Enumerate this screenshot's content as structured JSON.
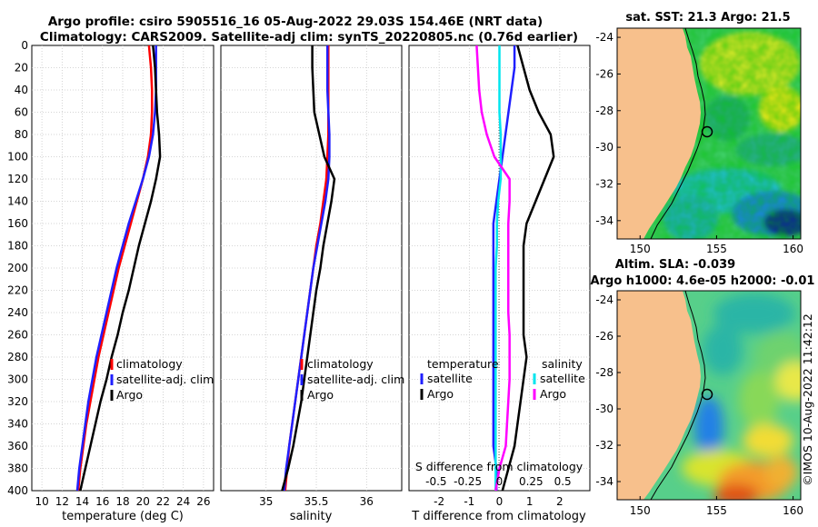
{
  "figure": {
    "title_line1": "Argo profile: csiro 5905516_16 05-Aug-2022 29.03S 154.46E (NRT data)",
    "title_line2": "Climatology: CARS2009. Satellite-adj clim: synTS_20220805.nc (0.76d earlier)",
    "timestamp": "©IMOS 10-Aug-2022 11:42:12"
  },
  "colors": {
    "climatology": "#ff0000",
    "satellite": "#1f1fff",
    "argo": "#000000",
    "salinity_sat": "#00e5ee",
    "salinity_argo": "#ff00ff",
    "land": "#f7c08c"
  },
  "chart_data": [
    {
      "type": "line",
      "name": "temperature-profile",
      "xlabel": "temperature (deg C)",
      "ylabel": "",
      "xlim": [
        9,
        27
      ],
      "ylim": [
        400,
        0
      ],
      "xticks": [
        "10",
        "12",
        "14",
        "16",
        "18",
        "20",
        "22",
        "24",
        "26"
      ],
      "yticks": [
        "0",
        "20",
        "40",
        "60",
        "80",
        "100",
        "120",
        "140",
        "160",
        "180",
        "200",
        "220",
        "240",
        "260",
        "280",
        "300",
        "320",
        "340",
        "360",
        "380",
        "400"
      ],
      "grid": true,
      "legend": [
        "climatology",
        "satellite-adj. clim",
        "Argo"
      ],
      "legend_position": "middle-right",
      "series": [
        {
          "name": "climatology",
          "color": "#ff0000",
          "x": [
            20.6,
            20.8,
            20.9,
            20.9,
            20.8,
            20.5,
            20.0,
            19.4,
            18.8,
            18.2,
            17.6,
            17.1,
            16.6,
            16.1,
            15.6,
            15.2,
            14.8,
            14.4,
            14.1,
            13.8,
            13.6
          ],
          "y": [
            0,
            20,
            40,
            60,
            80,
            100,
            120,
            140,
            160,
            180,
            200,
            220,
            240,
            260,
            280,
            300,
            320,
            340,
            360,
            380,
            400
          ]
        },
        {
          "name": "satellite-adj. clim",
          "color": "#1f1fff",
          "x": [
            21.3,
            21.3,
            21.3,
            21.2,
            21.0,
            20.6,
            20.0,
            19.3,
            18.6,
            18.0,
            17.4,
            16.9,
            16.4,
            15.9,
            15.4,
            15.0,
            14.6,
            14.3,
            14.0,
            13.7,
            13.5
          ],
          "y": [
            0,
            20,
            40,
            60,
            80,
            100,
            120,
            140,
            160,
            180,
            200,
            220,
            240,
            260,
            280,
            300,
            320,
            340,
            360,
            380,
            400
          ]
        },
        {
          "name": "Argo",
          "color": "#000000",
          "x": [
            21.0,
            21.2,
            21.3,
            21.4,
            21.6,
            21.7,
            21.3,
            20.8,
            20.2,
            19.6,
            19.1,
            18.6,
            18.0,
            17.5,
            16.9,
            16.4,
            15.8,
            15.3,
            14.8,
            14.3,
            13.8
          ],
          "y": [
            0,
            20,
            40,
            60,
            80,
            100,
            120,
            140,
            160,
            180,
            200,
            220,
            240,
            260,
            280,
            300,
            320,
            340,
            360,
            380,
            400
          ]
        }
      ]
    },
    {
      "type": "line",
      "name": "salinity-profile",
      "xlabel": "salinity",
      "xlim": [
        34.55,
        36.35
      ],
      "ylim": [
        400,
        0
      ],
      "xticks": [
        "35",
        "35.5",
        "36"
      ],
      "grid": true,
      "legend": [
        "climatology",
        "satellite-adj. clim",
        "Argo"
      ],
      "legend_position": "middle-right",
      "series": [
        {
          "name": "climatology",
          "color": "#ff0000",
          "x": [
            35.62,
            35.62,
            35.62,
            35.62,
            35.62,
            35.61,
            35.6,
            35.57,
            35.54,
            35.5,
            35.47,
            35.44,
            35.41,
            35.38,
            35.35,
            35.32,
            35.29,
            35.26,
            35.23,
            35.21,
            35.19
          ],
          "y": [
            0,
            20,
            40,
            60,
            80,
            100,
            120,
            140,
            160,
            180,
            200,
            220,
            240,
            260,
            280,
            300,
            320,
            340,
            360,
            380,
            400
          ]
        },
        {
          "name": "satellite-adj. clim",
          "color": "#1f1fff",
          "x": [
            35.61,
            35.61,
            35.61,
            35.62,
            35.63,
            35.63,
            35.62,
            35.59,
            35.55,
            35.51,
            35.47,
            35.44,
            35.41,
            35.38,
            35.35,
            35.32,
            35.29,
            35.26,
            35.23,
            35.2,
            35.18
          ],
          "y": [
            0,
            20,
            40,
            60,
            80,
            100,
            120,
            140,
            160,
            180,
            200,
            220,
            240,
            260,
            280,
            300,
            320,
            340,
            360,
            380,
            400
          ]
        },
        {
          "name": "Argo",
          "color": "#000000",
          "x": [
            35.46,
            35.46,
            35.47,
            35.48,
            35.53,
            35.58,
            35.68,
            35.65,
            35.61,
            35.57,
            35.54,
            35.5,
            35.47,
            35.44,
            35.41,
            35.38,
            35.35,
            35.31,
            35.27,
            35.22,
            35.16
          ],
          "y": [
            0,
            20,
            40,
            60,
            80,
            100,
            120,
            140,
            160,
            180,
            200,
            220,
            240,
            260,
            280,
            300,
            320,
            340,
            360,
            380,
            400
          ]
        }
      ]
    },
    {
      "type": "line",
      "name": "difference-profile",
      "xlabel": "T difference from climatology",
      "top_axis_label": "S difference from climatology",
      "xlim": [
        -3,
        3
      ],
      "ylim": [
        400,
        0
      ],
      "xticks": [
        "-2",
        "-1",
        "0",
        "1",
        "2"
      ],
      "top_ticks": [
        "-0.5",
        "-0.25",
        "0",
        "0.25",
        "0.5"
      ],
      "grid": true,
      "legend_temperature_title": "temperature",
      "legend_salinity_title": "salinity",
      "legend_temperature": [
        "satellite",
        "Argo"
      ],
      "legend_salinity": [
        "satellite",
        "Argo"
      ],
      "series": [
        {
          "name": "T satellite",
          "color": "#1f1fff",
          "x": [
            0.5,
            0.5,
            0.4,
            0.3,
            0.2,
            0.1,
            0.0,
            -0.1,
            -0.2,
            -0.2,
            -0.2,
            -0.2,
            -0.2,
            -0.2,
            -0.2,
            -0.2,
            -0.2,
            -0.2,
            -0.2,
            -0.1,
            -0.1
          ],
          "y": [
            0,
            20,
            40,
            60,
            80,
            100,
            120,
            140,
            160,
            180,
            200,
            220,
            240,
            260,
            280,
            300,
            320,
            340,
            360,
            380,
            400
          ]
        },
        {
          "name": "T Argo",
          "color": "#000000",
          "x": [
            0.6,
            0.8,
            1.0,
            1.3,
            1.7,
            1.8,
            1.5,
            1.2,
            0.9,
            0.8,
            0.8,
            0.8,
            0.8,
            0.8,
            0.9,
            0.8,
            0.7,
            0.6,
            0.5,
            0.3,
            0.1
          ],
          "y": [
            0,
            20,
            40,
            60,
            80,
            100,
            120,
            140,
            160,
            180,
            200,
            220,
            240,
            260,
            280,
            300,
            320,
            340,
            360,
            380,
            400
          ]
        },
        {
          "name": "S satellite",
          "color": "#00e5ee",
          "x": [
            0.0,
            0.0,
            0.0,
            0.0,
            0.01,
            0.01,
            0.01,
            -0.01,
            -0.02,
            -0.02,
            -0.03,
            -0.03,
            -0.03,
            -0.03,
            -0.03,
            -0.03,
            -0.03,
            -0.03,
            -0.03,
            -0.03,
            -0.03
          ],
          "y": [
            0,
            20,
            40,
            60,
            80,
            100,
            120,
            140,
            160,
            180,
            200,
            220,
            240,
            260,
            280,
            300,
            320,
            340,
            360,
            380,
            400
          ]
        },
        {
          "name": "S Argo",
          "color": "#ff00ff",
          "x": [
            -0.18,
            -0.17,
            -0.16,
            -0.14,
            -0.1,
            -0.04,
            0.08,
            0.08,
            0.07,
            0.07,
            0.07,
            0.07,
            0.07,
            0.08,
            0.08,
            0.08,
            0.07,
            0.06,
            0.05,
            0.0,
            -0.03
          ],
          "y": [
            0,
            20,
            40,
            60,
            80,
            100,
            120,
            140,
            160,
            180,
            200,
            220,
            240,
            260,
            280,
            300,
            320,
            340,
            360,
            380,
            400
          ]
        }
      ]
    },
    {
      "type": "heatmap",
      "name": "sst-map",
      "title": "sat. SST: 21.3 Argo: 21.5",
      "xlim": [
        148.5,
        160.5
      ],
      "ylim": [
        -35,
        -23.5
      ],
      "xticks": [
        "150",
        "155",
        "160"
      ],
      "yticks": [
        "-24",
        "-26",
        "-28",
        "-30",
        "-32",
        "-34"
      ],
      "marker": {
        "lon": 154.46,
        "lat": -29.03
      }
    },
    {
      "type": "heatmap",
      "name": "sla-map",
      "title_line1": "Altim. SLA: -0.039",
      "title_line2": "Argo h1000: 4.6e-05 h2000: -0.01",
      "xlim": [
        148.5,
        160.5
      ],
      "ylim": [
        -35,
        -23.5
      ],
      "xticks": [
        "150",
        "155",
        "160"
      ],
      "yticks": [
        "-24",
        "-26",
        "-28",
        "-30",
        "-32",
        "-34"
      ],
      "marker": {
        "lon": 154.46,
        "lat": -29.03
      }
    }
  ]
}
